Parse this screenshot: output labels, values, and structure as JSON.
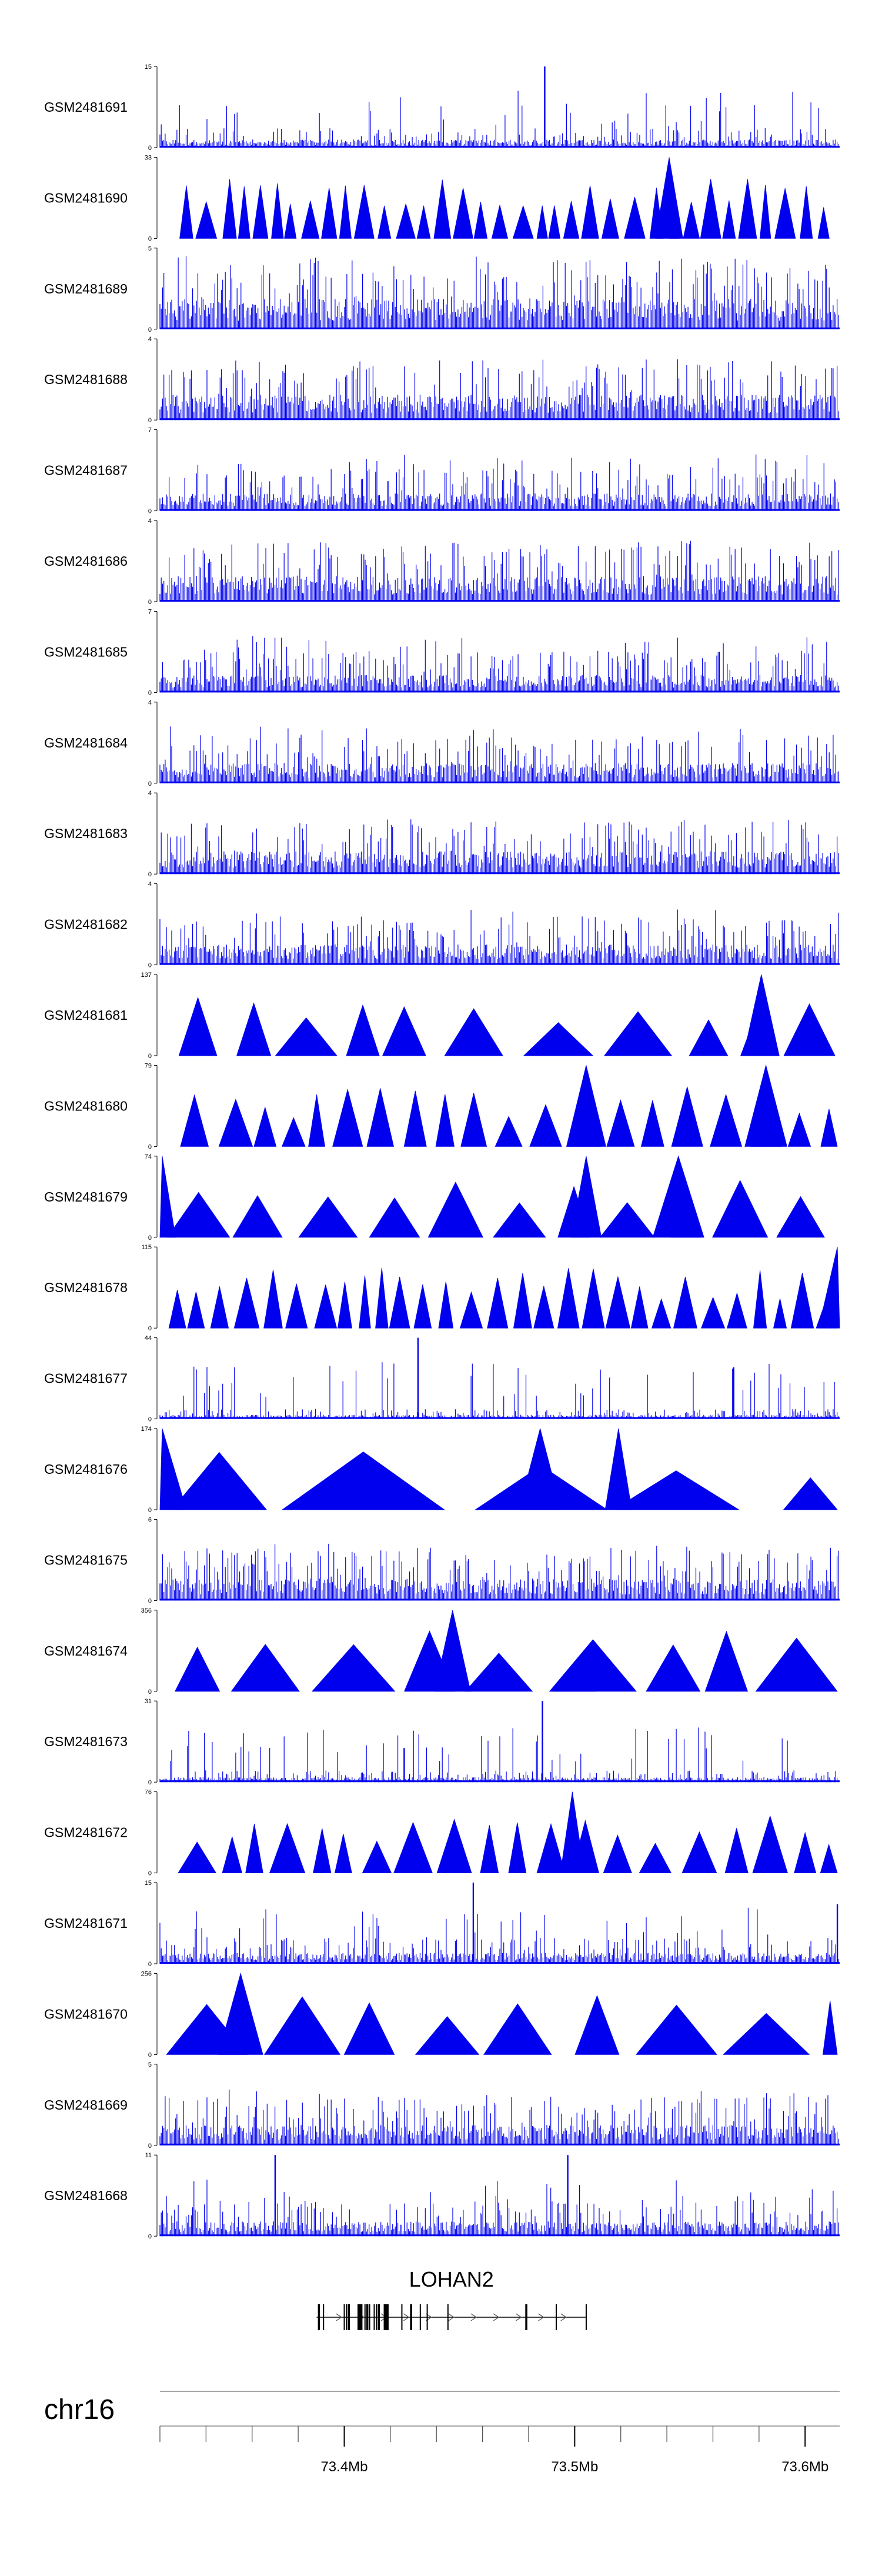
{
  "chart_data": {
    "type": "genome-track-area",
    "chromosome": "chr16",
    "region_mb": [
      73.32,
      73.615
    ],
    "fill_color": "#0000ee",
    "axis_ticks_mb": [
      73.4,
      73.5,
      73.6
    ],
    "axis_tick_labels": [
      "73.4Mb",
      "73.5Mb",
      "73.6Mb"
    ],
    "gene": {
      "name": "LOHAN2",
      "start_mb": 73.388,
      "end_mb": 73.505,
      "strand": "+",
      "exons_mb": [
        73.389,
        73.391,
        73.4,
        73.401,
        73.402,
        73.406,
        73.407,
        73.409,
        73.41,
        73.411,
        73.413,
        73.414,
        73.415,
        73.418,
        73.419,
        73.425,
        73.429,
        73.433,
        73.436,
        73.445,
        73.479,
        73.492,
        73.505
      ]
    },
    "tracks": [
      {
        "name": "GSM2481691",
        "ymax": 15,
        "ymax_label": "15",
        "style": "dense",
        "baseline": 1.2,
        "peaks": [
          [
            73.487,
            15
          ]
        ]
      },
      {
        "name": "GSM2481690",
        "ymax": 33,
        "ymax_label": "33",
        "style": "triangles",
        "triangles": 38,
        "peaks": [
          [
            73.541,
            33
          ]
        ]
      },
      {
        "name": "GSM2481689",
        "ymax": 5,
        "ymax_label": "5",
        "style": "dense",
        "baseline": 1.5,
        "peaks": []
      },
      {
        "name": "GSM2481688",
        "ymax": 4,
        "ymax_label": "4",
        "style": "dense",
        "baseline": 1.0,
        "peaks": []
      },
      {
        "name": "GSM2481687",
        "ymax": 7,
        "ymax_label": "7",
        "style": "dense",
        "baseline": 1.2,
        "peaks": []
      },
      {
        "name": "GSM2481686",
        "ymax": 4,
        "ymax_label": "4",
        "style": "dense",
        "baseline": 1.0,
        "peaks": []
      },
      {
        "name": "GSM2481685",
        "ymax": 7,
        "ymax_label": "7",
        "style": "dense",
        "baseline": 1.2,
        "peaks": []
      },
      {
        "name": "GSM2481684",
        "ymax": 4,
        "ymax_label": "4",
        "style": "dense",
        "baseline": 0.8,
        "peaks": []
      },
      {
        "name": "GSM2481683",
        "ymax": 4,
        "ymax_label": "4",
        "style": "dense",
        "baseline": 0.9,
        "peaks": []
      },
      {
        "name": "GSM2481682",
        "ymax": 4,
        "ymax_label": "4",
        "style": "dense",
        "baseline": 0.8,
        "peaks": []
      },
      {
        "name": "GSM2481681",
        "ymax": 137,
        "ymax_label": "137",
        "style": "triangles",
        "triangles": 11,
        "peaks": [
          [
            73.581,
            137
          ]
        ]
      },
      {
        "name": "GSM2481680",
        "ymax": 79,
        "ymax_label": "79",
        "style": "triangles",
        "triangles": 22,
        "peaks": [
          [
            73.505,
            79
          ],
          [
            73.583,
            79
          ]
        ]
      },
      {
        "name": "GSM2481679",
        "ymax": 74,
        "ymax_label": "74",
        "style": "triangles",
        "triangles": 13,
        "peaks": [
          [
            73.321,
            74
          ],
          [
            73.505,
            74
          ],
          [
            73.545,
            74
          ]
        ]
      },
      {
        "name": "GSM2481678",
        "ymax": 115,
        "ymax_label": "115",
        "style": "triangles",
        "triangles": 32,
        "peaks": [
          [
            73.614,
            115
          ]
        ]
      },
      {
        "name": "GSM2481677",
        "ymax": 44,
        "ymax_label": "44",
        "style": "dense",
        "baseline": 1.8,
        "peaks": [
          [
            73.432,
            44
          ],
          [
            73.569,
            28
          ]
        ]
      },
      {
        "name": "GSM2481676",
        "ymax": 174,
        "ymax_label": "174",
        "style": "triangles",
        "triangles": 5,
        "peaks": [
          [
            73.321,
            174
          ],
          [
            73.485,
            174
          ],
          [
            73.519,
            174
          ]
        ]
      },
      {
        "name": "GSM2481675",
        "ymax": 6,
        "ymax_label": "6",
        "style": "dense",
        "baseline": 1.3,
        "peaks": []
      },
      {
        "name": "GSM2481674",
        "ymax": 356,
        "ymax_label": "356",
        "style": "triangles",
        "triangles": 9,
        "peaks": [
          [
            73.447,
            356
          ],
          [
            73.5,
            130
          ]
        ]
      },
      {
        "name": "GSM2481673",
        "ymax": 31,
        "ymax_label": "31",
        "style": "dense",
        "baseline": 1.5,
        "peaks": [
          [
            73.426,
            13
          ],
          [
            73.486,
            31
          ]
        ]
      },
      {
        "name": "GSM2481672",
        "ymax": 76,
        "ymax_label": "76",
        "style": "triangles",
        "triangles": 21,
        "peaks": [
          [
            73.499,
            76
          ]
        ]
      },
      {
        "name": "GSM2481671",
        "ymax": 15,
        "ymax_label": "15",
        "style": "dense",
        "baseline": 1.6,
        "peaks": [
          [
            73.456,
            15
          ],
          [
            73.614,
            11
          ]
        ]
      },
      {
        "name": "GSM2481670",
        "ymax": 256,
        "ymax_label": "256",
        "style": "triangles",
        "triangles": 9,
        "peaks": [
          [
            73.355,
            256
          ]
        ]
      },
      {
        "name": "GSM2481669",
        "ymax": 5,
        "ymax_label": "5",
        "style": "dense",
        "baseline": 1.0,
        "peaks": []
      },
      {
        "name": "GSM2481668",
        "ymax": 11,
        "ymax_label": "11",
        "style": "dense",
        "baseline": 1.6,
        "peaks": [
          [
            73.37,
            11
          ],
          [
            73.497,
            11
          ]
        ]
      }
    ]
  }
}
